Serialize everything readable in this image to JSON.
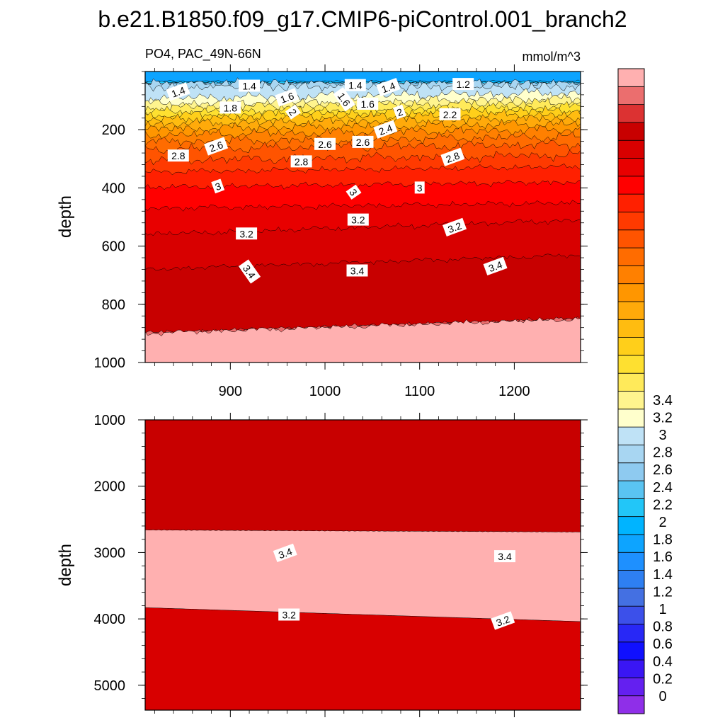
{
  "chart_data": {
    "type": "heatmap",
    "title": "b.e21.B1850.f09_g17.CMIP6-piControl.001_branch2",
    "variable_label": "PO4, PAC_49N-66N",
    "units_label": "mmol/m^3",
    "x_ticks": [
      900,
      1000,
      1100,
      1200
    ],
    "xlim": [
      810,
      1270
    ],
    "colorbar": {
      "ticks": [
        "0",
        "0.2",
        "0.4",
        "0.6",
        "0.8",
        "1",
        "1.2",
        "1.4",
        "1.6",
        "1.8",
        "2",
        "2.2",
        "2.4",
        "2.6",
        "2.8",
        "3",
        "3.2",
        "3.4"
      ],
      "colors": [
        "#8f2fe8",
        "#6420f0",
        "#3a16f4",
        "#1010ff",
        "#2828f6",
        "#3c50ea",
        "#4470e2",
        "#2e7ff2",
        "#1e90ff",
        "#0da4ff",
        "#00b4ff",
        "#22c6f8",
        "#5ac4f2",
        "#8ecaf0",
        "#a8d6f2",
        "#bfe2f6",
        "#ffffcc",
        "#fff48e",
        "#ffea5a",
        "#fee030",
        "#ffcf1a",
        "#ffbc10",
        "#ffaa0a",
        "#ff9600",
        "#ff8000",
        "#ff6c00",
        "#ff5400",
        "#ff3a00",
        "#ff2000",
        "#ff0000",
        "#e80000",
        "#d80000",
        "#c80000",
        "#dc3232",
        "#eb6e6e",
        "#ffb0b0"
      ]
    },
    "panels": [
      {
        "name": "upper",
        "ylabel": "depth",
        "y_ticks": [
          200,
          400,
          600,
          800,
          1000
        ],
        "ylim": [
          0,
          1000
        ],
        "contour_labels": [
          {
            "x": 845,
            "y": 70,
            "text": "1.4"
          },
          {
            "x": 920,
            "y": 50,
            "text": "1.4"
          },
          {
            "x": 1032,
            "y": 48,
            "text": "1.4"
          },
          {
            "x": 1067,
            "y": 55,
            "text": "1.4"
          },
          {
            "x": 1146,
            "y": 44,
            "text": "1.2"
          },
          {
            "x": 1020,
            "y": 96,
            "text": "1.6"
          },
          {
            "x": 960,
            "y": 90,
            "text": "1.6"
          },
          {
            "x": 1045,
            "y": 112,
            "text": "1.6"
          },
          {
            "x": 900,
            "y": 125,
            "text": "1.8"
          },
          {
            "x": 1079,
            "y": 140,
            "text": "2"
          },
          {
            "x": 966,
            "y": 140,
            "text": "2"
          },
          {
            "x": 1132,
            "y": 148,
            "text": "2.2"
          },
          {
            "x": 1064,
            "y": 200,
            "text": "2.4"
          },
          {
            "x": 1000,
            "y": 250,
            "text": "2.6"
          },
          {
            "x": 1040,
            "y": 243,
            "text": "2.6"
          },
          {
            "x": 885,
            "y": 258,
            "text": "2.6"
          },
          {
            "x": 845,
            "y": 290,
            "text": "2.8"
          },
          {
            "x": 975,
            "y": 310,
            "text": "2.8"
          },
          {
            "x": 1135,
            "y": 295,
            "text": "2.8"
          },
          {
            "x": 1100,
            "y": 400,
            "text": "3"
          },
          {
            "x": 1030,
            "y": 415,
            "text": "3"
          },
          {
            "x": 887,
            "y": 395,
            "text": "3"
          },
          {
            "x": 1035,
            "y": 510,
            "text": "3.2"
          },
          {
            "x": 917,
            "y": 558,
            "text": "3.2"
          },
          {
            "x": 1137,
            "y": 536,
            "text": "3.2"
          },
          {
            "x": 920,
            "y": 688,
            "text": "3.4"
          },
          {
            "x": 1034,
            "y": 685,
            "text": "3.4"
          },
          {
            "x": 1180,
            "y": 670,
            "text": "3.4"
          }
        ]
      },
      {
        "name": "lower",
        "ylabel": "depth",
        "y_ticks": [
          1000,
          2000,
          3000,
          4000,
          5000
        ],
        "ylim": [
          1000,
          5375
        ],
        "contour_labels": [
          {
            "x": 958,
            "y": 3010,
            "text": "3.4"
          },
          {
            "x": 1190,
            "y": 3060,
            "text": "3.4"
          },
          {
            "x": 962,
            "y": 3940,
            "text": "3.2"
          },
          {
            "x": 1188,
            "y": 4030,
            "text": "3.2"
          }
        ]
      }
    ]
  }
}
